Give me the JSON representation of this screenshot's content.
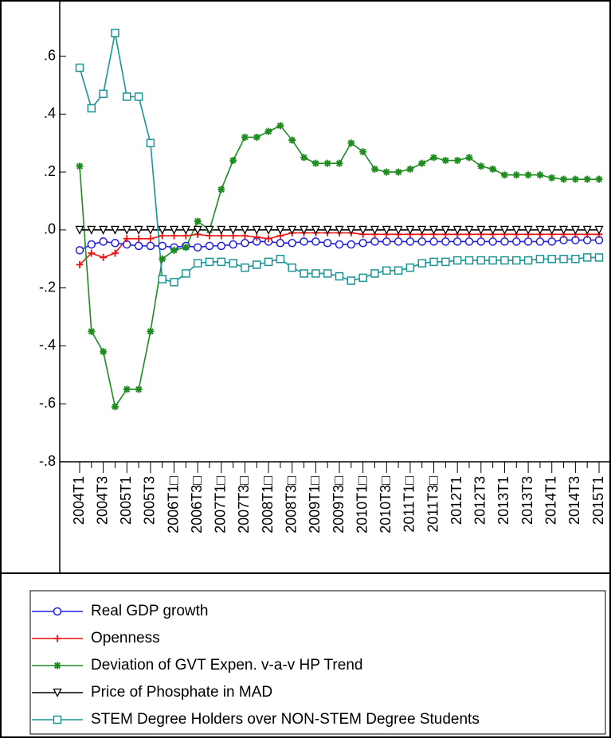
{
  "chart_data": {
    "type": "line",
    "categories": [
      "2004T1",
      null,
      "2004T3",
      null,
      "2005T1",
      null,
      "2005T3",
      null,
      "2006T1□",
      null,
      "2006T3□",
      null,
      "2007T1□",
      null,
      "2007T3□",
      null,
      "2008T1□",
      null,
      "2008T3□",
      null,
      "2009T1□",
      null,
      "2009T3□",
      null,
      "2010T1□",
      null,
      "2010T3□",
      null,
      "2011T1□",
      null,
      "2011T3□",
      null,
      "2012T1",
      null,
      "2012T3",
      null,
      "2013T1",
      null,
      "2013T3",
      null,
      "2014T1",
      null,
      "2014T3",
      null,
      "2015T1"
    ],
    "series": [
      {
        "name": "Real GDP growth",
        "color": "#1f1fe0",
        "marker": "circle",
        "values": [
          -0.07,
          -0.05,
          -0.04,
          -0.045,
          -0.05,
          -0.055,
          -0.055,
          -0.055,
          -0.06,
          -0.055,
          -0.06,
          -0.055,
          -0.055,
          -0.05,
          -0.045,
          -0.04,
          -0.04,
          -0.045,
          -0.045,
          -0.04,
          -0.04,
          -0.045,
          -0.05,
          -0.05,
          -0.045,
          -0.04,
          -0.04,
          -0.04,
          -0.04,
          -0.04,
          -0.04,
          -0.04,
          -0.04,
          -0.04,
          -0.04,
          -0.04,
          -0.04,
          -0.04,
          -0.04,
          -0.04,
          -0.04,
          -0.035,
          -0.035,
          -0.035,
          -0.035
        ]
      },
      {
        "name": "Openness",
        "color": "#ee1111",
        "marker": "plus",
        "values": [
          -0.12,
          -0.08,
          -0.095,
          -0.08,
          -0.03,
          -0.03,
          -0.03,
          -0.02,
          -0.02,
          -0.02,
          -0.015,
          -0.02,
          -0.02,
          -0.02,
          -0.02,
          -0.025,
          -0.03,
          -0.02,
          -0.01,
          -0.01,
          -0.01,
          -0.01,
          -0.01,
          -0.01,
          -0.015,
          -0.015,
          -0.015,
          -0.015,
          -0.015,
          -0.015,
          -0.015,
          -0.015,
          -0.015,
          -0.015,
          -0.015,
          -0.015,
          -0.015,
          -0.015,
          -0.015,
          -0.015,
          -0.015,
          -0.015,
          -0.015,
          -0.015,
          -0.015
        ]
      },
      {
        "name": "Deviation of GVT Expen. v-a-v HP Trend",
        "color": "#1e8c1e",
        "marker": "star",
        "values": [
          0.22,
          -0.35,
          -0.42,
          -0.61,
          -0.55,
          -0.55,
          -0.35,
          -0.1,
          -0.07,
          -0.06,
          0.03,
          0.0,
          0.14,
          0.24,
          0.32,
          0.32,
          0.34,
          0.36,
          0.31,
          0.25,
          0.23,
          0.23,
          0.23,
          0.3,
          0.27,
          0.21,
          0.2,
          0.2,
          0.21,
          0.23,
          0.25,
          0.24,
          0.24,
          0.25,
          0.22,
          0.21,
          0.19,
          0.19,
          0.19,
          0.19,
          0.18,
          0.175,
          0.175,
          0.175,
          0.175
        ]
      },
      {
        "name": "Price of Phosphate in MAD",
        "color": "#000000",
        "marker": "triangle",
        "values": [
          0,
          0,
          0,
          0,
          0,
          0,
          0,
          0,
          0,
          0,
          0,
          0,
          0,
          0,
          0,
          0,
          0,
          0,
          0,
          0,
          0,
          0,
          0,
          0,
          0,
          0,
          0,
          0,
          0,
          0,
          0,
          0,
          0,
          0,
          0,
          0,
          0,
          0,
          0,
          0,
          0,
          0,
          0,
          0,
          0
        ]
      },
      {
        "name": "STEM Degree Holders over NON-STEM Degree Students",
        "color": "#1a9494",
        "marker": "square",
        "values": [
          0.56,
          0.42,
          0.47,
          0.68,
          0.46,
          0.46,
          0.3,
          -0.17,
          -0.18,
          -0.15,
          -0.115,
          -0.11,
          -0.11,
          -0.115,
          -0.13,
          -0.12,
          -0.11,
          -0.1,
          -0.13,
          -0.15,
          -0.15,
          -0.15,
          -0.16,
          -0.175,
          -0.165,
          -0.15,
          -0.14,
          -0.14,
          -0.13,
          -0.115,
          -0.11,
          -0.11,
          -0.105,
          -0.105,
          -0.105,
          -0.105,
          -0.105,
          -0.105,
          -0.105,
          -0.1,
          -0.1,
          -0.1,
          -0.1,
          -0.095,
          -0.095
        ]
      }
    ],
    "ylim": [
      -0.8,
      0.78
    ],
    "yticks": [
      {
        "value": 0.6,
        "label": ".6"
      },
      {
        "value": 0.4,
        "label": ".4"
      },
      {
        "value": 0.2,
        "label": ".2"
      },
      {
        "value": 0,
        "label": ".0"
      },
      {
        "value": -0.2,
        "label": "-.2"
      },
      {
        "value": -0.4,
        "label": "-.4"
      },
      {
        "value": -0.6,
        "label": "-.6"
      },
      {
        "value": -0.8,
        "label": "-.8"
      }
    ],
    "grid": false,
    "legend": "bottom"
  }
}
